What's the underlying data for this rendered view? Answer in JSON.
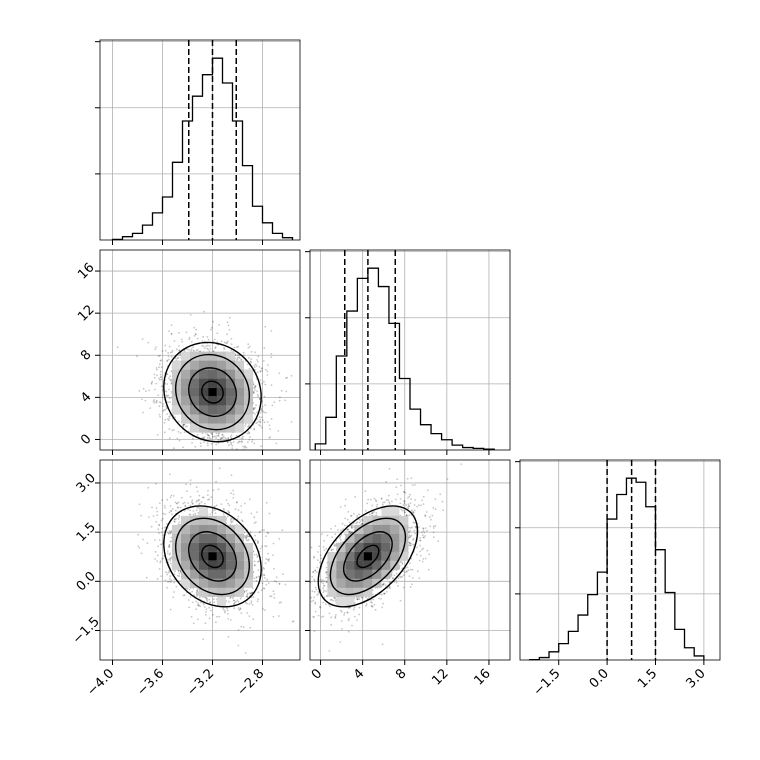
{
  "chart_data": [
    {
      "panel": "hist-param-1",
      "type": "histogram",
      "x_range": [
        -4.1,
        -2.5
      ],
      "x_ticks": [
        -4.0,
        -3.6,
        -3.2,
        -2.8
      ],
      "y_tick_count": 3,
      "grid": true,
      "quantiles": [
        -3.39,
        -3.2,
        -3.01
      ],
      "bin_edges": [
        -4.0,
        -3.92,
        -3.84,
        -3.76,
        -3.68,
        -3.6,
        -3.52,
        -3.44,
        -3.36,
        -3.28,
        -3.2,
        -3.12,
        -3.04,
        -2.96,
        -2.88,
        -2.8,
        -2.72,
        -2.64,
        -2.56
      ],
      "counts": [
        2,
        10,
        20,
        45,
        82,
        130,
        235,
        360,
        435,
        500,
        550,
        475,
        360,
        225,
        102,
        52,
        20,
        7
      ]
    },
    {
      "panel": "hist-param-2",
      "type": "histogram",
      "x_range": [
        -1,
        18
      ],
      "x_ticks": [
        0,
        4,
        8,
        12,
        16
      ],
      "y_tick_count": 3,
      "grid": true,
      "quantiles": [
        2.3,
        4.5,
        7.1
      ],
      "bin_edges": [
        -0.5,
        0.5,
        1.5,
        2.5,
        3.5,
        4.5,
        5.5,
        6.5,
        7.5,
        8.5,
        9.5,
        10.5,
        11.5,
        12.5,
        13.5,
        14.5,
        15.5,
        16.5
      ],
      "counts": [
        15,
        80,
        230,
        340,
        420,
        445,
        400,
        310,
        175,
        100,
        62,
        40,
        25,
        12,
        6,
        4,
        2
      ]
    },
    {
      "panel": "hist-param-3",
      "type": "histogram",
      "x_range": [
        -2.7,
        3.5
      ],
      "x_ticks": [
        -1.5,
        0.0,
        1.5,
        3.0
      ],
      "y_tick_count": 3,
      "grid": true,
      "quantiles": [
        0.0,
        0.76,
        1.5
      ],
      "bin_edges": [
        -2.4,
        -2.1,
        -1.8,
        -1.5,
        -1.2,
        -0.9,
        -0.6,
        -0.3,
        0.0,
        0.3,
        0.6,
        0.9,
        1.2,
        1.5,
        1.8,
        2.1,
        2.4,
        2.7,
        3.0
      ],
      "counts": [
        1,
        6,
        20,
        40,
        70,
        110,
        160,
        215,
        345,
        405,
        445,
        435,
        375,
        270,
        165,
        75,
        30,
        10
      ]
    },
    {
      "panel": "scatter-2-vs-1",
      "type": "scatter",
      "x_range": [
        -4.1,
        -2.5
      ],
      "y_range": [
        -1,
        18
      ],
      "x_ticks": [
        -4.0,
        -3.6,
        -3.2,
        -2.8
      ],
      "y_ticks": [
        0,
        4,
        8,
        12,
        16
      ],
      "grid": true,
      "center": [
        -3.2,
        4.5
      ],
      "sigma": [
        0.19,
        2.3
      ],
      "correlation": -0.1
    },
    {
      "panel": "scatter-3-vs-1",
      "type": "scatter",
      "x_range": [
        -4.1,
        -2.5
      ],
      "y_range": [
        -2.4,
        3.7
      ],
      "x_ticks": [
        -4.0,
        -3.6,
        -3.2,
        -2.8
      ],
      "y_ticks": [
        -1.5,
        0.0,
        1.5,
        3.0
      ],
      "grid": true,
      "center": [
        -3.2,
        0.76
      ],
      "sigma": [
        0.19,
        0.75
      ],
      "correlation": -0.25
    },
    {
      "panel": "scatter-3-vs-2",
      "type": "scatter",
      "x_range": [
        -1,
        18
      ],
      "y_range": [
        -2.4,
        3.7
      ],
      "x_ticks": [
        0,
        4,
        8,
        12,
        16
      ],
      "y_ticks": [
        -1.5,
        0.0,
        1.5,
        3.0
      ],
      "grid": true,
      "center": [
        4.5,
        0.76
      ],
      "sigma": [
        2.3,
        0.75
      ],
      "correlation": 0.5
    }
  ]
}
